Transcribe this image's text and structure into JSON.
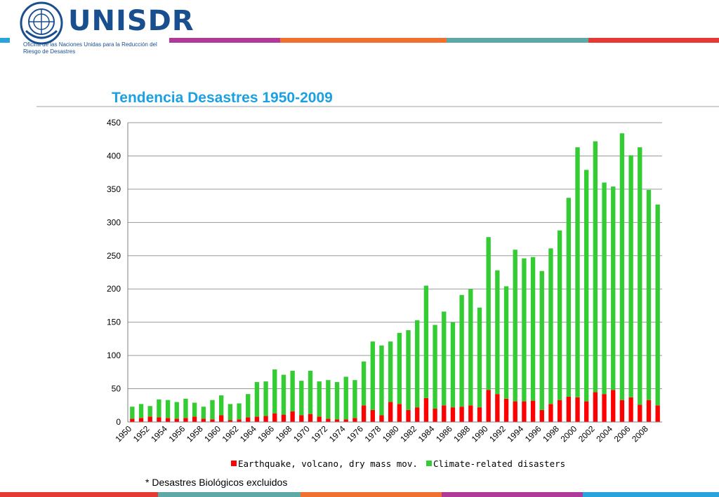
{
  "header": {
    "brand_name": "UNISDR",
    "tagline": "Oficina de las Naciones Unidas para la Reducción del Riesgo de Desastres",
    "logo_icon": "un-emblem-icon"
  },
  "colors": {
    "brand_blue": "#1a4f8f",
    "title_blue": "#1ba1e2",
    "earthquake_red": "#ff0000",
    "climate_green": "#33cc33",
    "stripe_colors": [
      "#b03a9a",
      "#f07030",
      "#5fa8a8",
      "#e53935",
      "#29a3dc"
    ]
  },
  "slide": {
    "title": "Tendencia Desastres 1950-2009",
    "footnote": "* Desastres Biológicos excluidos"
  },
  "chart_data": {
    "type": "bar",
    "stacked": true,
    "x": [
      1950,
      1951,
      1952,
      1953,
      1954,
      1955,
      1956,
      1957,
      1958,
      1959,
      1960,
      1961,
      1962,
      1963,
      1964,
      1965,
      1966,
      1967,
      1968,
      1969,
      1970,
      1971,
      1972,
      1973,
      1974,
      1975,
      1976,
      1977,
      1978,
      1979,
      1980,
      1981,
      1982,
      1983,
      1984,
      1985,
      1986,
      1987,
      1988,
      1989,
      1990,
      1991,
      1992,
      1993,
      1994,
      1995,
      1996,
      1997,
      1998,
      1999,
      2000,
      2001,
      2002,
      2003,
      2004,
      2005,
      2006,
      2007,
      2008,
      2009
    ],
    "x_tick_labels": [
      "1950",
      "1952",
      "1954",
      "1956",
      "1958",
      "1960",
      "1962",
      "1964",
      "1966",
      "1968",
      "1970",
      "1972",
      "1974",
      "1976",
      "1978",
      "1980",
      "1982",
      "1984",
      "1986",
      "1988",
      "1990",
      "1992",
      "1994",
      "1996",
      "1998",
      "2000",
      "2002",
      "2004",
      "2006",
      "2008"
    ],
    "series": [
      {
        "name": "Earthquake, volcano, dry mass mov.",
        "color": "#ff0000",
        "values": [
          5,
          6,
          8,
          7,
          6,
          5,
          6,
          8,
          5,
          4,
          10,
          3,
          4,
          7,
          8,
          9,
          13,
          11,
          16,
          10,
          12,
          8,
          5,
          4,
          4,
          6,
          25,
          18,
          10,
          30,
          27,
          18,
          22,
          36,
          20,
          25,
          22,
          23,
          25,
          22,
          48,
          42,
          35,
          31,
          31,
          32,
          18,
          27,
          33,
          38,
          37,
          31,
          45,
          42,
          48,
          33,
          37,
          26,
          33,
          25
        ]
      },
      {
        "name": "Climate-related disasters",
        "color": "#33cc33",
        "values": [
          18,
          21,
          16,
          27,
          27,
          25,
          29,
          21,
          18,
          29,
          30,
          24,
          24,
          35,
          52,
          52,
          66,
          60,
          61,
          52,
          65,
          53,
          58,
          56,
          64,
          57,
          66,
          103,
          105,
          91,
          107,
          120,
          131,
          169,
          126,
          141,
          128,
          168,
          175,
          150,
          230,
          186,
          169,
          228,
          215,
          216,
          209,
          234,
          255,
          299,
          376,
          348,
          377,
          318,
          306,
          401,
          364,
          387,
          316,
          302
        ]
      }
    ],
    "ylim": [
      0,
      450
    ],
    "y_ticks": [
      0,
      50,
      100,
      150,
      200,
      250,
      300,
      350,
      400,
      450
    ],
    "grid": true,
    "legend_position": "bottom"
  }
}
